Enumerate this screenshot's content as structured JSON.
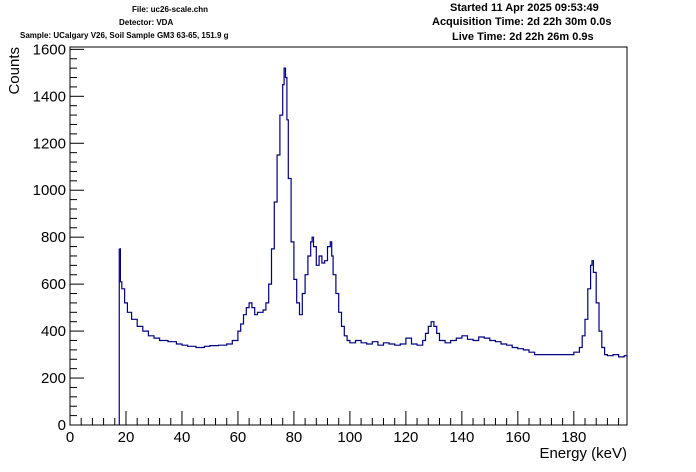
{
  "header": {
    "file": "File: uc26-scale.chn",
    "detector": "Detector: VDA",
    "sample": "Sample: UCalgary V26, Soil Sample GM3 63-65, 151.9 g",
    "started": "Started 11 Apr 2025 09:53:49",
    "acquisition_time": "Acquisition Time: 2d 22h 30m 0.0s",
    "live_time": "Live Time: 2d 22h 26m 0.9s"
  },
  "chart_data": {
    "type": "line",
    "style": "step-histogram",
    "line_color": "#000080",
    "xlabel": "Energy (keV)",
    "ylabel": "Counts",
    "xlim": [
      0,
      199
    ],
    "ylim": [
      0,
      1610
    ],
    "xticks": [
      0,
      20,
      40,
      60,
      80,
      100,
      120,
      140,
      160,
      180
    ],
    "yticks": [
      0,
      200,
      400,
      600,
      800,
      1000,
      1200,
      1400,
      1600
    ],
    "grid": false,
    "legend": "none",
    "series": [
      {
        "x": [
          17.6,
          18.0,
          18.5,
          19.5,
          20.5,
          22,
          24,
          26,
          28,
          30,
          32,
          35,
          38,
          40,
          42,
          45,
          48,
          50,
          53,
          56,
          58,
          60,
          61,
          62,
          63,
          64,
          65,
          66,
          67,
          68,
          69,
          70,
          71,
          72,
          73,
          74,
          75,
          76,
          76.5,
          77,
          77.5,
          78,
          79,
          80,
          81,
          82,
          83,
          84,
          85,
          86,
          86.5,
          87,
          88,
          89,
          90,
          91,
          92,
          93,
          93.5,
          94,
          95,
          96,
          97,
          98,
          99,
          100,
          102,
          104,
          106,
          108,
          110,
          112,
          114,
          116,
          118,
          120,
          122,
          124,
          126,
          127,
          128,
          129,
          130,
          131,
          132,
          134,
          136,
          138,
          140,
          142,
          144,
          146,
          148,
          150,
          152,
          154,
          156,
          158,
          160,
          162,
          164,
          166,
          168,
          170,
          172,
          174,
          176,
          178,
          180,
          182,
          183,
          184,
          185,
          186,
          186.5,
          187,
          188,
          189,
          190,
          191,
          192,
          194,
          196,
          198,
          199
        ],
        "y": [
          750,
          610,
          580,
          520,
          480,
          450,
          420,
          400,
          380,
          370,
          360,
          355,
          345,
          340,
          335,
          330,
          335,
          338,
          340,
          345,
          360,
          400,
          430,
          470,
          500,
          520,
          500,
          470,
          480,
          480,
          490,
          520,
          600,
          750,
          950,
          1150,
          1320,
          1450,
          1520,
          1480,
          1300,
          1050,
          780,
          620,
          520,
          470,
          560,
          640,
          720,
          780,
          800,
          760,
          680,
          720,
          690,
          700,
          760,
          780,
          720,
          640,
          560,
          480,
          420,
          380,
          360,
          350,
          360,
          350,
          345,
          355,
          340,
          350,
          345,
          340,
          345,
          370,
          345,
          340,
          360,
          390,
          420,
          440,
          420,
          390,
          360,
          350,
          360,
          370,
          380,
          365,
          360,
          375,
          370,
          360,
          355,
          345,
          340,
          330,
          325,
          320,
          310,
          300,
          300,
          300,
          300,
          300,
          300,
          300,
          310,
          330,
          380,
          450,
          580,
          680,
          700,
          650,
          520,
          400,
          330,
          300,
          295,
          300,
          290,
          295,
          290
        ]
      }
    ],
    "lower_bound_spike": {
      "x": 17.6,
      "from": 0,
      "to": 750
    }
  }
}
